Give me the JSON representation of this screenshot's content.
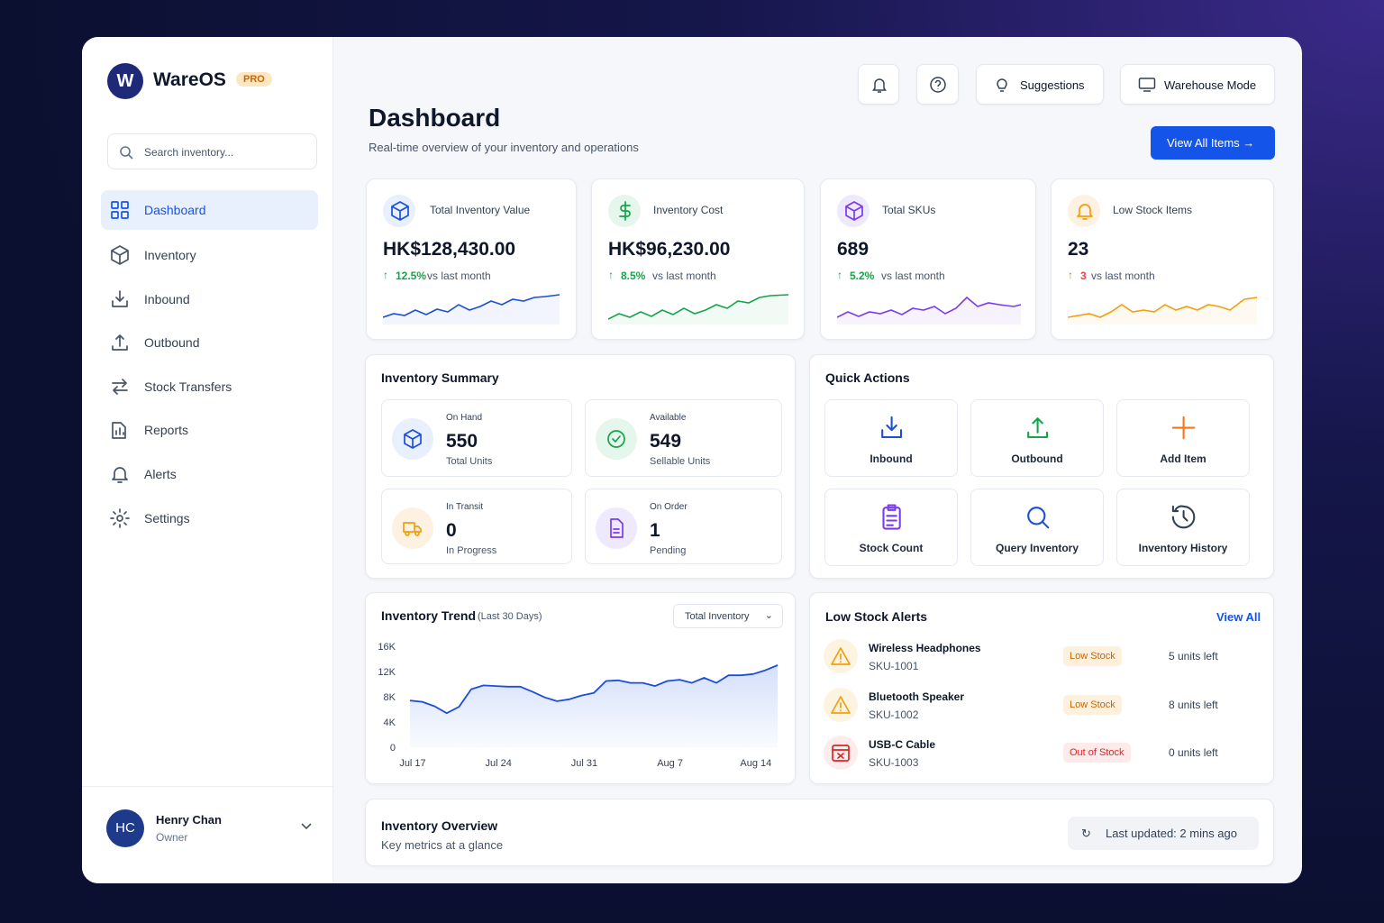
{
  "sidebar": {
    "brand": "WareOS",
    "badge": "PRO",
    "search_placeholder": "Search inventory...",
    "nav": [
      "Dashboard",
      "Inventory",
      "Inbound",
      "Outbound",
      "Stock Transfers",
      "Reports",
      "Alerts",
      "Settings"
    ],
    "user": {
      "initials": "HC",
      "name": "Henry Chan",
      "role": "Owner"
    }
  },
  "header": {
    "title": "Dashboard",
    "subtitle": "Real-time overview of your inventory and operations",
    "buttons": [
      "Suggestions",
      "Warehouse Mode"
    ],
    "primary": "View All Items"
  },
  "kpis": [
    {
      "label": "Total Inventory Value",
      "value": "HK$128,430.00",
      "change": "12.5%",
      "note": "vs last month"
    },
    {
      "label": "Inventory Cost",
      "value": "HK$96,230.00",
      "change": "8.5%",
      "note": "vs last month"
    },
    {
      "label": "Total SKUs",
      "value": 689,
      "change": "5.2%",
      "note": "vs last month"
    },
    {
      "label": "Low Stock Items",
      "value": 23,
      "change": 3,
      "note": "vs last month"
    }
  ],
  "summary": {
    "title": "Inventory Summary",
    "items": [
      {
        "label": "On Hand",
        "value": 550,
        "note": "Total Units"
      },
      {
        "label": "Available",
        "value": 549,
        "note": "Sellable Units"
      },
      {
        "label": "In Transit",
        "value": 0,
        "note": "In Progress"
      },
      {
        "label": "On Order",
        "value": 1,
        "note": "Pending"
      }
    ]
  },
  "quick_actions": {
    "title": "Quick Actions",
    "items": [
      "Inbound",
      "Outbound",
      "Add Item",
      "Stock Count",
      "Query Inventory",
      "Inventory History"
    ]
  },
  "chart_data": {
    "type": "line",
    "title": "Inventory Trend",
    "subtitle": "(Last 30 Days)",
    "dropdown": "Total Inventory",
    "color": "#1d4ed8",
    "grid": false,
    "categories": [
      "Jul 17",
      null,
      null,
      null,
      null,
      null,
      null,
      "Jul 24",
      null,
      null,
      null,
      null,
      null,
      null,
      "Jul 31",
      null,
      null,
      null,
      null,
      null,
      null,
      "Aug 7",
      null,
      null,
      null,
      null,
      null,
      null,
      "Aug 14",
      null,
      null
    ],
    "values": [
      7400,
      7200,
      6500,
      5400,
      6400,
      9200,
      9800,
      9700,
      9600,
      9600,
      8800,
      7900,
      7300,
      7600,
      8200,
      8600,
      10500,
      10600,
      10200,
      10200,
      9700,
      10500,
      10700,
      10200,
      11000,
      10200,
      11400,
      11400,
      11600,
      12200,
      13000
    ],
    "ylim": [
      0,
      16000
    ],
    "yticks": [
      0,
      {
        "value": 4000,
        "label": "4K"
      },
      {
        "value": 8000,
        "label": "8K"
      },
      {
        "value": 12000,
        "label": "12K"
      },
      {
        "value": 16000,
        "label": "16K"
      }
    ]
  },
  "alerts": {
    "title": "Low Stock Alerts",
    "link": "View All",
    "items": [
      {
        "name": "Wireless Headphones",
        "sku": "SKU-1001",
        "status": "Low Stock",
        "units": "5 units left"
      },
      {
        "name": "Bluetooth Speaker",
        "sku": "SKU-1002",
        "status": "Low Stock",
        "units": "8 units left"
      },
      {
        "name": "USB-C Cable",
        "sku": "SKU-1003",
        "status": "Out of Stock",
        "units": "0 units left"
      }
    ]
  },
  "overview": {
    "title": "Inventory Overview",
    "subtitle": "Key metrics at a glance",
    "updated": "Last updated: 2 mins ago"
  }
}
